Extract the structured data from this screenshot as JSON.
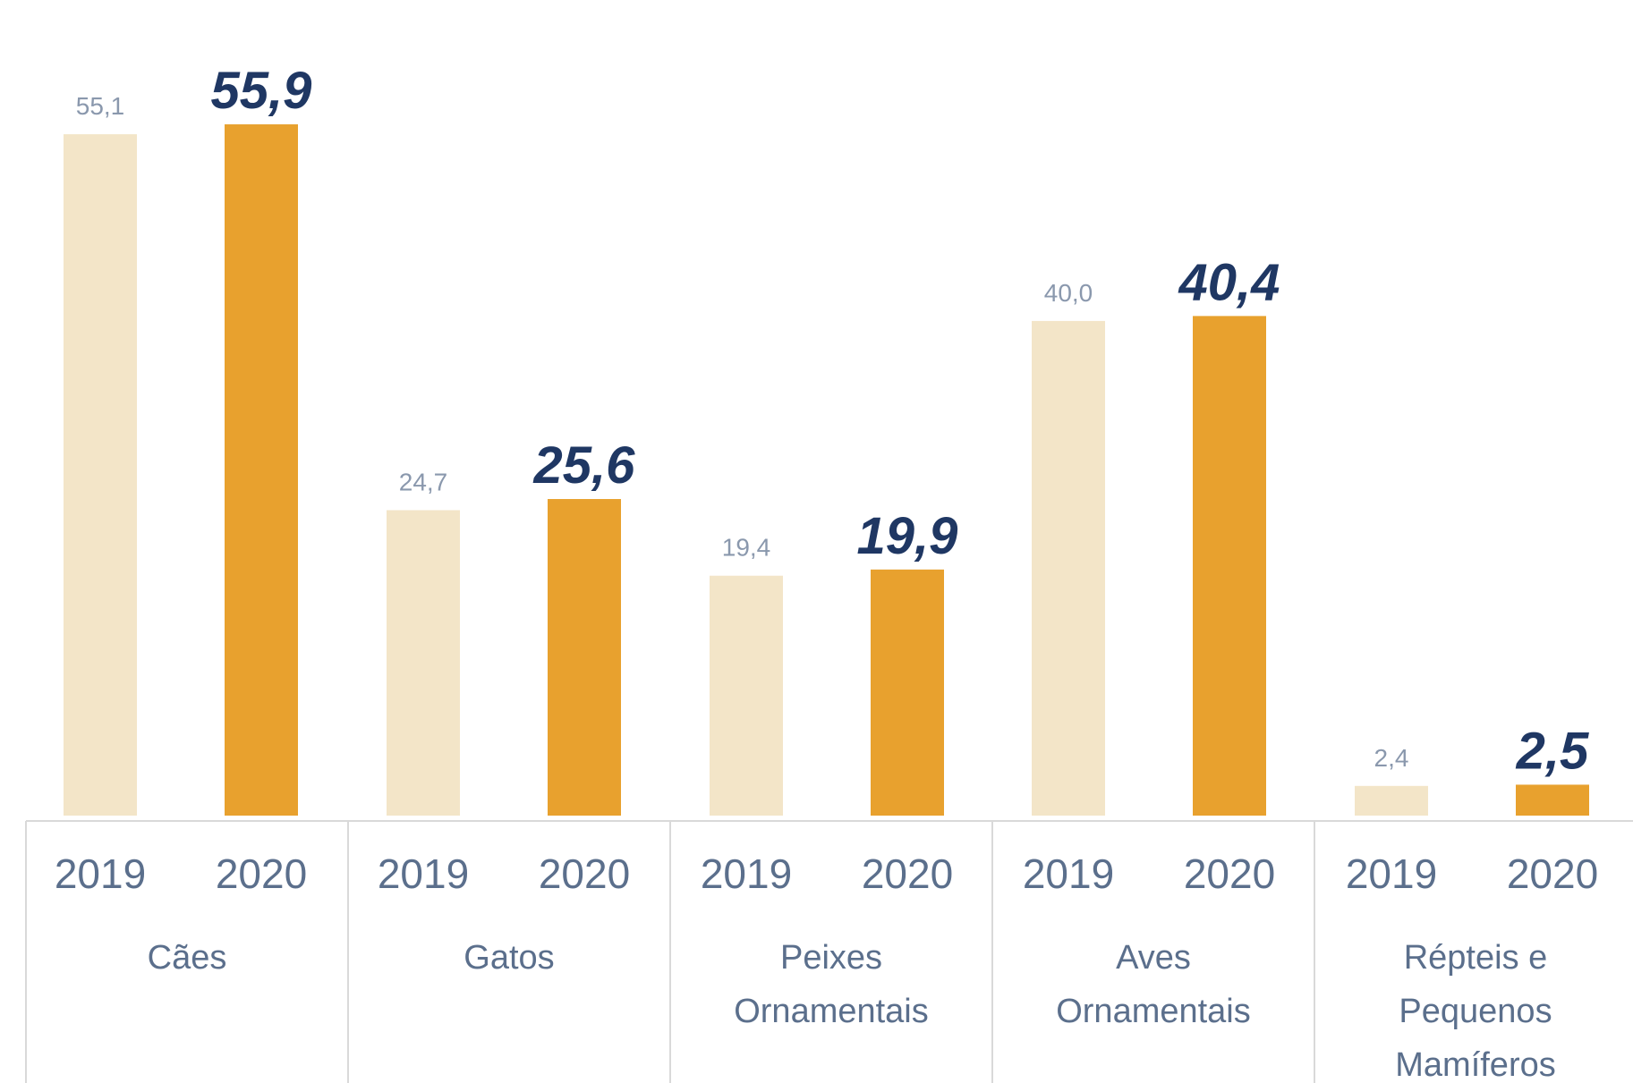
{
  "chart_data": {
    "type": "bar",
    "categories": [
      "Cães",
      "Gatos",
      "Peixes Ornamentais",
      "Aves Ornamentais",
      "Répteis e Pequenos Mamíferos"
    ],
    "category_label_lines": [
      [
        "Cães"
      ],
      [
        "Gatos"
      ],
      [
        "Peixes",
        "Ornamentais"
      ],
      [
        "Aves",
        "Ornamentais"
      ],
      [
        "Répteis e",
        "Pequenos",
        "Mamíferos"
      ]
    ],
    "series": [
      {
        "name": "2019",
        "values": [
          55.1,
          24.7,
          19.4,
          40.0,
          2.4
        ],
        "value_labels": [
          "55,1",
          "24,7",
          "19,4",
          "40,0",
          "2,4"
        ],
        "color": "#f3e5c8"
      },
      {
        "name": "2020",
        "values": [
          55.9,
          25.6,
          19.9,
          40.4,
          2.5
        ],
        "value_labels": [
          "55,9",
          "25,6",
          "19,9",
          "40,4",
          "2,5"
        ],
        "color": "#e8a12e"
      }
    ],
    "ylim": [
      0,
      58
    ],
    "grid": false,
    "legend": "none",
    "value_label_color_2019": "#8a98ad",
    "value_label_color_2020": "#1f3763",
    "axis_text_color": "#5b6f8c",
    "separator_color": "#d9d9d9"
  }
}
